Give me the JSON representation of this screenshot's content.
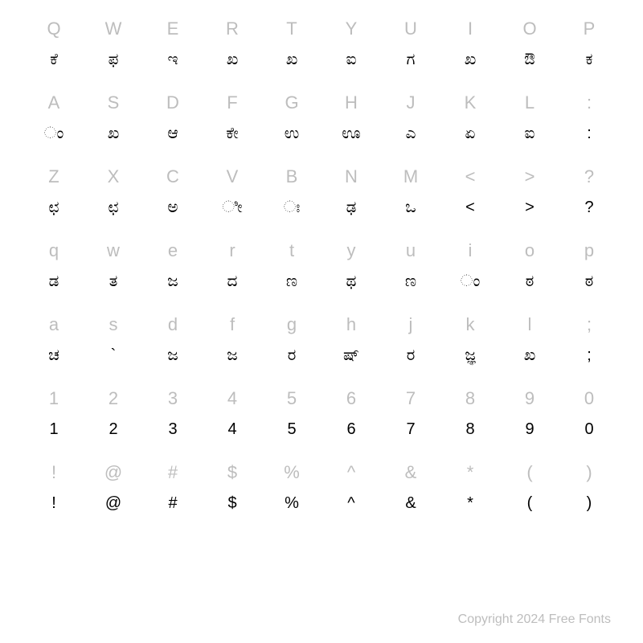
{
  "chart": {
    "type": "table",
    "background_color": "#ffffff",
    "key_label_color": "#bdbdbd",
    "glyph_color": "#000000",
    "key_label_fontsize": 22,
    "glyph_fontsize": 20,
    "columns": 10,
    "rows": [
      {
        "keys": [
          "Q",
          "W",
          "E",
          "R",
          "T",
          "Y",
          "U",
          "I",
          "O",
          "P"
        ],
        "glyphs": [
          "ಕೆ",
          "ಫ",
          "ಇ",
          "ಖ",
          "ಖ",
          "ಐ",
          "ಗ",
          "ಖ",
          "ಔ",
          "ಕ"
        ]
      },
      {
        "keys": [
          "A",
          "S",
          "D",
          "F",
          "G",
          "H",
          "J",
          "K",
          "L",
          ":"
        ],
        "glyphs": [
          "ಂ",
          "ಖ",
          "ಆ",
          "ಕೇ",
          "ಉ",
          "ಊ",
          "ಎ",
          "ಏ",
          "ಐ",
          ":"
        ]
      },
      {
        "keys": [
          "Z",
          "X",
          "C",
          "V",
          "B",
          "N",
          "M",
          "<",
          ">",
          "?"
        ],
        "glyphs": [
          "ಛ",
          "ಛ",
          "ಅ",
          "ೀ",
          "ಃ",
          "ಢ",
          "ಒ",
          "<",
          ">",
          "?"
        ]
      },
      {
        "keys": [
          "q",
          "w",
          "e",
          "r",
          "t",
          "y",
          "u",
          "i",
          "o",
          "p"
        ],
        "glyphs": [
          "ಡ",
          "ತ",
          "ಜ",
          "ದ",
          "ಣ",
          "ಥ",
          "ಣ",
          "ಂ",
          "ಠ",
          "ಠ"
        ]
      },
      {
        "keys": [
          "a",
          "s",
          "d",
          "f",
          "g",
          "h",
          "j",
          "k",
          "l",
          ";"
        ],
        "glyphs": [
          "ಚ",
          "`",
          "ಜ",
          "ಜ",
          "ರ",
          "ಷ್",
          "ರ",
          "ಜ್ಞ",
          "ಖ",
          ";"
        ]
      },
      {
        "keys": [
          "1",
          "2",
          "3",
          "4",
          "5",
          "6",
          "7",
          "8",
          "9",
          "0"
        ],
        "glyphs": [
          "1",
          "2",
          "3",
          "4",
          "5",
          "6",
          "7",
          "8",
          "9",
          "0"
        ]
      },
      {
        "keys": [
          "!",
          "@",
          "#",
          "$",
          "%",
          "^",
          "&",
          "*",
          "(",
          ")"
        ],
        "glyphs": [
          "!",
          "@",
          "#",
          "$",
          "%",
          "^",
          "&",
          "*",
          "(",
          ")"
        ]
      }
    ]
  },
  "copyright": "Copyright 2024 Free Fonts"
}
